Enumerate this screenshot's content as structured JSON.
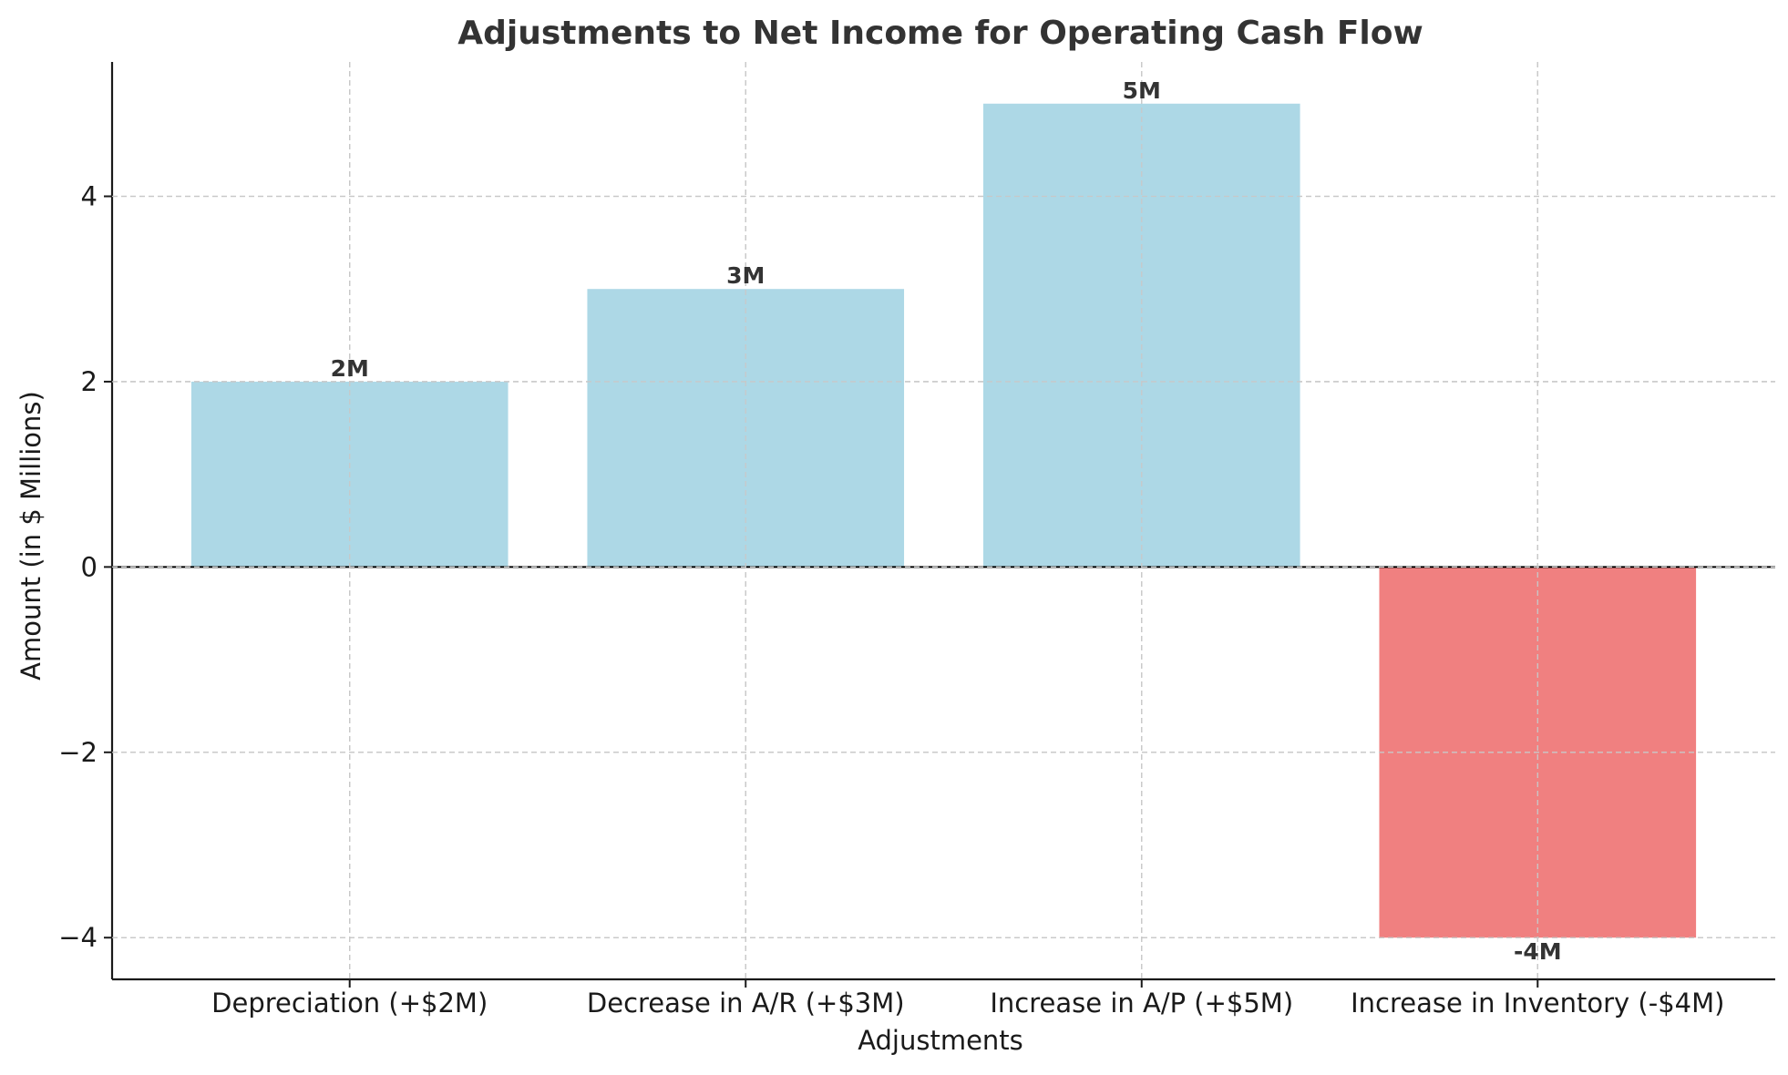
{
  "chart_data": {
    "type": "bar",
    "title": "Adjustments to Net Income for Operating Cash Flow",
    "xlabel": "Adjustments",
    "ylabel": "Amount (in $ Millions)",
    "categories": [
      "Depreciation (+$2M)",
      "Decrease in A/R (+$3M)",
      "Increase in A/P (+$5M)",
      "Increase in Inventory (-$4M)"
    ],
    "values": [
      2,
      3,
      5,
      -4
    ],
    "data_labels": [
      "2M",
      "3M",
      "5M",
      "-4M"
    ],
    "colors": [
      "#add8e6",
      "#add8e6",
      "#add8e6",
      "#f08080"
    ],
    "ylim": [
      -4.45,
      5.45
    ],
    "yticks": [
      -4,
      -2,
      0,
      2,
      4
    ],
    "ytick_labels": [
      "−4",
      "−2",
      "0",
      "2",
      "4"
    ],
    "grid": true,
    "zero_line": true
  }
}
